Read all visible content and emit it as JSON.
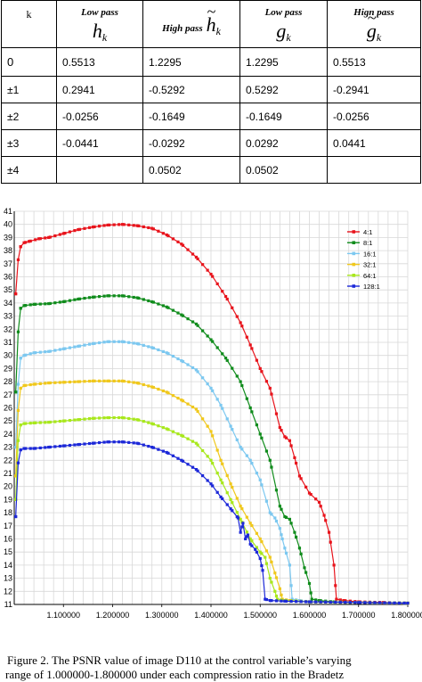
{
  "table": {
    "headers": {
      "k": "k",
      "col1_name": "Low pass",
      "col1_symbol": "h",
      "col2_name": "High pass",
      "col2_symbol": "h",
      "col3_name": "Low pass",
      "col3_symbol": "g",
      "col4_name": "Hign pass",
      "col4_symbol": "g",
      "subscript": "k"
    },
    "rows": [
      {
        "k": "0",
        "h": "0.5513",
        "ht": "1.2295",
        "g": "1.2295",
        "gt": "0.5513"
      },
      {
        "k": "±1",
        "h": "0.2941",
        "ht": "-0.5292",
        "g": "0.5292",
        "gt": "-0.2941"
      },
      {
        "k": "±2",
        "h": "-0.0256",
        "ht": "-0.1649",
        "g": "-0.1649",
        "gt": "-0.0256"
      },
      {
        "k": "±3",
        "h": "-0.0441",
        "ht": "-0.0292",
        "g": "0.0292",
        "gt": "0.0441"
      },
      {
        "k": "±4",
        "h": "",
        "ht": "0.0502",
        "g": "0.0502",
        "gt": ""
      }
    ]
  },
  "caption": {
    "line1": "Figure 2.   The PSNR value of image D110 at the control variable’s varying",
    "line2": "range of 1.000000-1.800000 under each compression ratio in the Bradetz"
  },
  "chart_data": {
    "type": "line",
    "xlabel": "",
    "ylabel": "",
    "xlim": [
      1.0,
      1.8
    ],
    "ylim": [
      11,
      41
    ],
    "x_ticks": [
      "1.100000",
      "1.200000",
      "1.300000",
      "1.400000",
      "1.500000",
      "1.600000",
      "1.700000",
      "1.800000"
    ],
    "y_ticks": [
      11,
      12,
      13,
      14,
      15,
      16,
      17,
      18,
      19,
      20,
      21,
      22,
      23,
      24,
      25,
      26,
      27,
      28,
      29,
      30,
      31,
      32,
      33,
      34,
      35,
      36,
      37,
      38,
      39,
      40,
      41
    ],
    "grid": true,
    "legend_position": "top-right",
    "series": [
      {
        "name": "4:1",
        "color": "#e8141c",
        "points": [
          [
            1.003,
            34.7
          ],
          [
            1.008,
            37.3
          ],
          [
            1.013,
            38.3
          ],
          [
            1.02,
            38.6
          ],
          [
            1.03,
            38.7
          ],
          [
            1.05,
            38.9
          ],
          [
            1.07,
            39.0
          ],
          [
            1.1,
            39.3
          ],
          [
            1.13,
            39.6
          ],
          [
            1.16,
            39.8
          ],
          [
            1.19,
            39.95
          ],
          [
            1.22,
            40.0
          ],
          [
            1.25,
            39.9
          ],
          [
            1.28,
            39.7
          ],
          [
            1.31,
            39.2
          ],
          [
            1.34,
            38.5
          ],
          [
            1.37,
            37.5
          ],
          [
            1.4,
            36.2
          ],
          [
            1.43,
            34.5
          ],
          [
            1.46,
            32.5
          ],
          [
            1.48,
            30.8
          ],
          [
            1.5,
            29.0
          ],
          [
            1.52,
            27.5
          ],
          [
            1.54,
            24.5
          ],
          [
            1.55,
            23.8
          ],
          [
            1.56,
            23.5
          ],
          [
            1.57,
            22.2
          ],
          [
            1.58,
            20.8
          ],
          [
            1.6,
            19.5
          ],
          [
            1.62,
            18.8
          ],
          [
            1.63,
            17.8
          ],
          [
            1.64,
            16.5
          ],
          [
            1.65,
            14.0
          ],
          [
            1.655,
            11.4
          ],
          [
            1.67,
            11.3
          ],
          [
            1.7,
            11.2
          ],
          [
            1.75,
            11.15
          ],
          [
            1.8,
            11.1
          ]
        ]
      },
      {
        "name": "8:1",
        "color": "#108c1c",
        "points": [
          [
            1.003,
            27.2
          ],
          [
            1.008,
            31.8
          ],
          [
            1.013,
            33.6
          ],
          [
            1.02,
            33.8
          ],
          [
            1.04,
            33.9
          ],
          [
            1.07,
            33.95
          ],
          [
            1.1,
            34.1
          ],
          [
            1.13,
            34.3
          ],
          [
            1.16,
            34.45
          ],
          [
            1.19,
            34.55
          ],
          [
            1.22,
            34.55
          ],
          [
            1.25,
            34.4
          ],
          [
            1.28,
            34.1
          ],
          [
            1.31,
            33.7
          ],
          [
            1.34,
            33.1
          ],
          [
            1.37,
            32.4
          ],
          [
            1.4,
            31.2
          ],
          [
            1.43,
            29.8
          ],
          [
            1.46,
            28.0
          ],
          [
            1.48,
            26.0
          ],
          [
            1.5,
            24.0
          ],
          [
            1.52,
            22.0
          ],
          [
            1.54,
            18.5
          ],
          [
            1.55,
            17.7
          ],
          [
            1.56,
            17.5
          ],
          [
            1.57,
            16.5
          ],
          [
            1.58,
            15.3
          ],
          [
            1.59,
            13.8
          ],
          [
            1.6,
            12.6
          ],
          [
            1.605,
            11.4
          ],
          [
            1.62,
            11.3
          ],
          [
            1.65,
            11.2
          ],
          [
            1.7,
            11.15
          ],
          [
            1.8,
            11.1
          ]
        ]
      },
      {
        "name": "16:1",
        "color": "#7cc8f0",
        "points": [
          [
            1.003,
            23.0
          ],
          [
            1.008,
            27.8
          ],
          [
            1.013,
            29.8
          ],
          [
            1.02,
            30.0
          ],
          [
            1.04,
            30.2
          ],
          [
            1.07,
            30.3
          ],
          [
            1.1,
            30.5
          ],
          [
            1.13,
            30.7
          ],
          [
            1.16,
            30.9
          ],
          [
            1.19,
            31.05
          ],
          [
            1.22,
            31.05
          ],
          [
            1.25,
            30.9
          ],
          [
            1.28,
            30.6
          ],
          [
            1.31,
            30.2
          ],
          [
            1.34,
            29.6
          ],
          [
            1.37,
            28.9
          ],
          [
            1.4,
            27.5
          ],
          [
            1.42,
            26.2
          ],
          [
            1.44,
            24.6
          ],
          [
            1.46,
            23.0
          ],
          [
            1.48,
            22.0
          ],
          [
            1.5,
            20.5
          ],
          [
            1.52,
            18.0
          ],
          [
            1.53,
            17.6
          ],
          [
            1.54,
            16.8
          ],
          [
            1.545,
            16.0
          ],
          [
            1.55,
            15.3
          ],
          [
            1.56,
            14.0
          ],
          [
            1.565,
            11.4
          ],
          [
            1.58,
            11.3
          ],
          [
            1.6,
            11.2
          ],
          [
            1.7,
            11.15
          ],
          [
            1.8,
            11.1
          ]
        ]
      },
      {
        "name": "32:1",
        "color": "#f0c81c",
        "points": [
          [
            1.003,
            20.8
          ],
          [
            1.008,
            25.8
          ],
          [
            1.013,
            27.5
          ],
          [
            1.02,
            27.7
          ],
          [
            1.04,
            27.8
          ],
          [
            1.07,
            27.9
          ],
          [
            1.1,
            27.95
          ],
          [
            1.13,
            28.0
          ],
          [
            1.16,
            28.05
          ],
          [
            1.19,
            28.05
          ],
          [
            1.22,
            28.05
          ],
          [
            1.25,
            27.9
          ],
          [
            1.28,
            27.6
          ],
          [
            1.31,
            27.2
          ],
          [
            1.34,
            26.6
          ],
          [
            1.37,
            25.9
          ],
          [
            1.4,
            24.2
          ],
          [
            1.42,
            22.0
          ],
          [
            1.44,
            20.2
          ],
          [
            1.46,
            18.5
          ],
          [
            1.48,
            17.2
          ],
          [
            1.5,
            16.0
          ],
          [
            1.52,
            14.6
          ],
          [
            1.53,
            13.4
          ],
          [
            1.54,
            12.2
          ],
          [
            1.545,
            11.4
          ],
          [
            1.56,
            11.3
          ],
          [
            1.6,
            11.2
          ],
          [
            1.7,
            11.15
          ],
          [
            1.8,
            11.1
          ]
        ]
      },
      {
        "name": "64:1",
        "color": "#a8e81c",
        "points": [
          [
            1.003,
            19.0
          ],
          [
            1.008,
            23.5
          ],
          [
            1.013,
            24.7
          ],
          [
            1.02,
            24.8
          ],
          [
            1.04,
            24.85
          ],
          [
            1.07,
            24.9
          ],
          [
            1.1,
            25.0
          ],
          [
            1.13,
            25.1
          ],
          [
            1.16,
            25.2
          ],
          [
            1.19,
            25.25
          ],
          [
            1.22,
            25.25
          ],
          [
            1.25,
            25.1
          ],
          [
            1.28,
            24.8
          ],
          [
            1.31,
            24.4
          ],
          [
            1.34,
            23.9
          ],
          [
            1.37,
            23.3
          ],
          [
            1.4,
            22.0
          ],
          [
            1.42,
            20.5
          ],
          [
            1.44,
            19.0
          ],
          [
            1.46,
            17.5
          ],
          [
            1.48,
            16.0
          ],
          [
            1.5,
            15.0
          ],
          [
            1.51,
            14.6
          ],
          [
            1.52,
            13.0
          ],
          [
            1.53,
            12.0
          ],
          [
            1.535,
            11.4
          ],
          [
            1.55,
            11.3
          ],
          [
            1.6,
            11.2
          ],
          [
            1.7,
            11.15
          ],
          [
            1.8,
            11.1
          ]
        ]
      },
      {
        "name": "128:1",
        "color": "#1c28d8",
        "points": [
          [
            1.003,
            17.7
          ],
          [
            1.008,
            21.8
          ],
          [
            1.013,
            22.8
          ],
          [
            1.02,
            22.9
          ],
          [
            1.04,
            22.9
          ],
          [
            1.07,
            23.0
          ],
          [
            1.1,
            23.1
          ],
          [
            1.13,
            23.2
          ],
          [
            1.16,
            23.3
          ],
          [
            1.19,
            23.4
          ],
          [
            1.22,
            23.4
          ],
          [
            1.25,
            23.3
          ],
          [
            1.28,
            23.0
          ],
          [
            1.31,
            22.6
          ],
          [
            1.34,
            22.0
          ],
          [
            1.37,
            21.3
          ],
          [
            1.4,
            20.2
          ],
          [
            1.42,
            19.2
          ],
          [
            1.44,
            18.3
          ],
          [
            1.455,
            17.6
          ],
          [
            1.46,
            16.5
          ],
          [
            1.465,
            17.2
          ],
          [
            1.47,
            16.0
          ],
          [
            1.475,
            16.3
          ],
          [
            1.48,
            15.6
          ],
          [
            1.49,
            15.2
          ],
          [
            1.5,
            14.5
          ],
          [
            1.505,
            13.6
          ],
          [
            1.51,
            11.4
          ],
          [
            1.52,
            11.3
          ],
          [
            1.55,
            11.25
          ],
          [
            1.6,
            11.2
          ],
          [
            1.7,
            11.15
          ],
          [
            1.8,
            11.1
          ]
        ]
      }
    ]
  }
}
